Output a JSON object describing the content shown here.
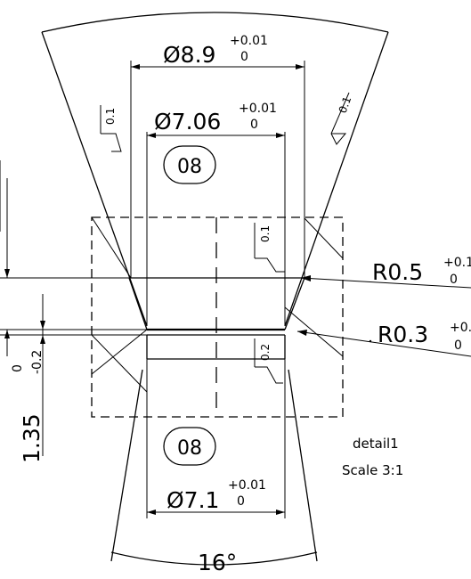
{
  "dimensions": {
    "outer_diameter": {
      "label": "Ø8.9",
      "tol_upper": "+0.01",
      "tol_lower": "0"
    },
    "inner_diameter": {
      "label": "Ø7.06",
      "tol_upper": "+0.01",
      "tol_lower": "0"
    },
    "bottom_diameter": {
      "label": "Ø7.1",
      "tol_upper": "+0.01",
      "tol_lower": "0"
    },
    "radius_upper": {
      "label": "R0.5",
      "tol_upper": "+0.1",
      "tol_lower": "0"
    },
    "radius_lower": {
      "label": "R0.3",
      "tol_upper": "+0.",
      "tol_lower": "0"
    },
    "height": {
      "label": "1.35",
      "tol_upper": "0",
      "tol_lower": "-0.2"
    },
    "angle": {
      "label": "16°"
    }
  },
  "surface_finish": {
    "upper_left": "0.1",
    "upper_right": "0.1",
    "mid_right": "0.1",
    "lower_right": "0.2"
  },
  "callouts": {
    "top": "08",
    "bottom": "08"
  },
  "detail": {
    "name": "detail1",
    "scale": "Scale 3:1"
  }
}
